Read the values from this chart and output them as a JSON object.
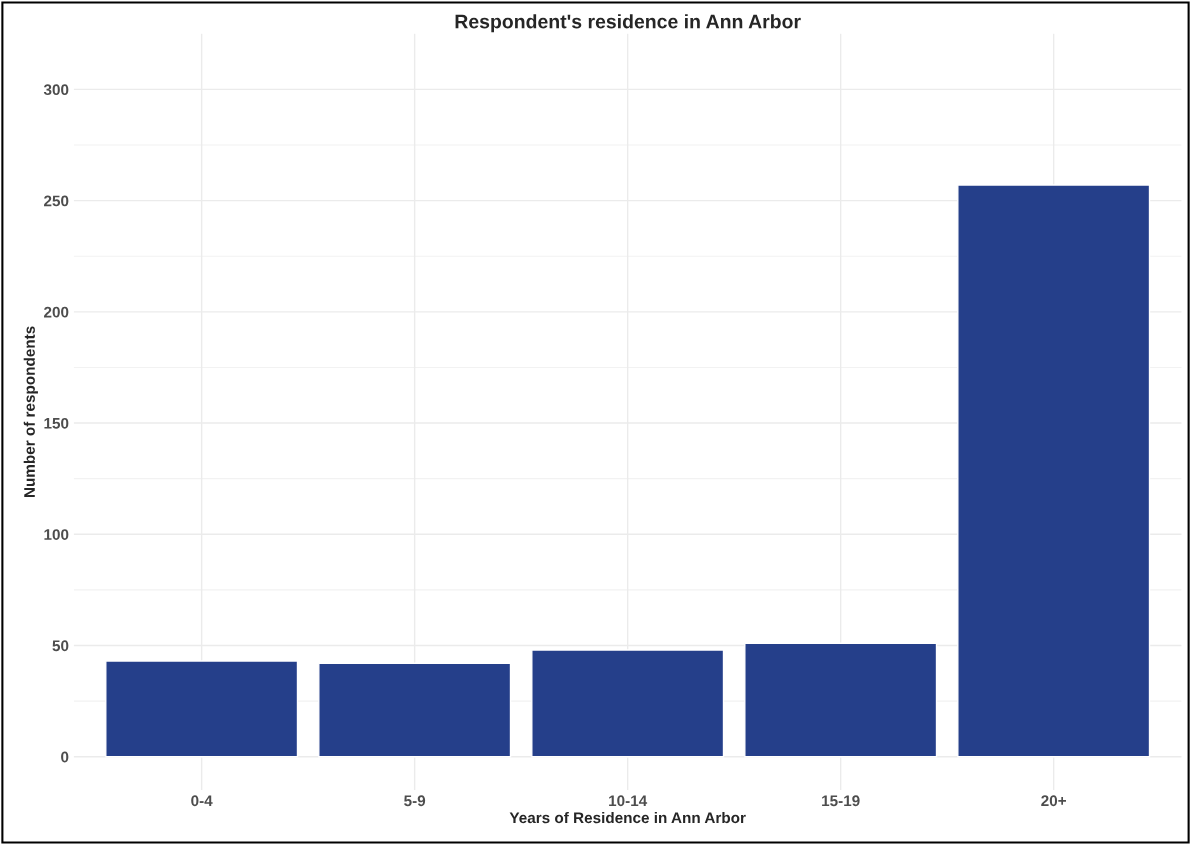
{
  "chart_data": {
    "type": "bar",
    "title": "Respondent's residence in Ann Arbor",
    "xlabel": "Years of Residence in Ann Arbor",
    "ylabel": "Number of respondents",
    "categories": [
      "0-4",
      "5-9",
      "10-14",
      "15-19",
      "20+"
    ],
    "values": [
      43,
      42,
      48,
      51,
      257
    ],
    "color": "#253f8a",
    "ylim": [
      -15,
      325
    ],
    "yticks": [
      0,
      50,
      100,
      150,
      200,
      250,
      300
    ],
    "grid": true
  }
}
